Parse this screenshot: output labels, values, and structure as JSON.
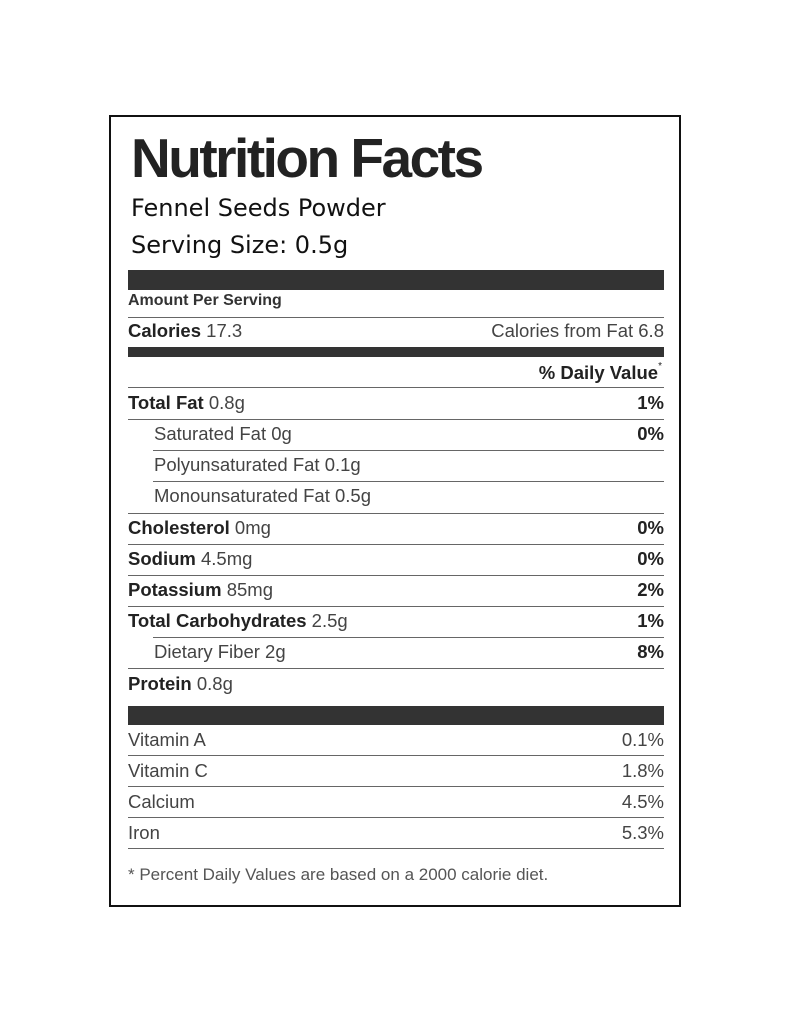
{
  "title": "Nutrition Facts",
  "product": "Fennel Seeds Powder",
  "serving_size": "Serving Size: 0.5g",
  "amount_per_serving": "Amount Per Serving",
  "calories": {
    "label": "Calories",
    "value": "17.3",
    "from_fat": "Calories from Fat 6.8"
  },
  "daily_value_header": "% Daily Value",
  "daily_value_mark": "*",
  "nutrients": [
    {
      "name": "Total Fat",
      "amount": "0.8g",
      "pct": "1%"
    },
    {
      "name": "Saturated Fat",
      "amount": "0g",
      "pct": "0%"
    },
    {
      "name": "Polyunsaturated Fat",
      "amount": "0.1g",
      "pct": ""
    },
    {
      "name": "Monounsaturated Fat",
      "amount": "0.5g",
      "pct": ""
    },
    {
      "name": "Cholesterol",
      "amount": "0mg",
      "pct": "0%"
    },
    {
      "name": "Sodium",
      "amount": "4.5mg",
      "pct": "0%"
    },
    {
      "name": "Potassium",
      "amount": "85mg",
      "pct": "2%"
    },
    {
      "name": "Total Carbohydrates",
      "amount": "2.5g",
      "pct": "1%"
    },
    {
      "name": "Dietary Fiber",
      "amount": "2g",
      "pct": "8%"
    },
    {
      "name": "Protein",
      "amount": "0.8g",
      "pct": ""
    }
  ],
  "vitamins": [
    {
      "name": "Vitamin A",
      "pct": "0.1%"
    },
    {
      "name": "Vitamin C",
      "pct": "1.8%"
    },
    {
      "name": "Calcium",
      "pct": "4.5%"
    },
    {
      "name": "Iron",
      "pct": "5.3%"
    }
  ],
  "footnote": "* Percent Daily Values are based on a 2000 calorie diet."
}
